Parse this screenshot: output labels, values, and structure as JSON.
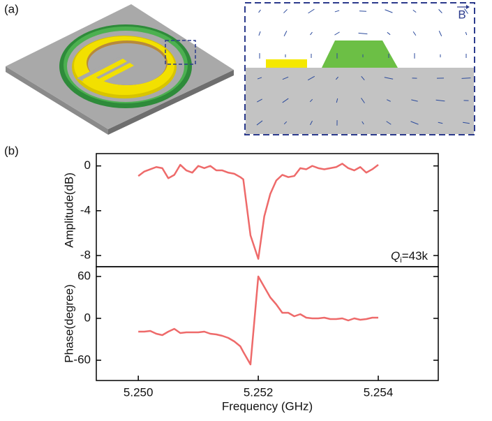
{
  "panel_labels": [
    "(a)",
    "(b)"
  ],
  "field_label": "B",
  "chart_data": [
    {
      "type": "line",
      "y_label": "Amplitude(dB)",
      "annotation": {
        "main": "Q",
        "sub": "i",
        "rest": "=43k"
      },
      "x": [
        5.25,
        5.2501,
        5.2502,
        5.2503,
        5.2504,
        5.2505,
        5.2506,
        5.2507,
        5.2508,
        5.2509,
        5.251,
        5.2511,
        5.2512,
        5.2513,
        5.2514,
        5.2515,
        5.2516,
        5.2517,
        5.25175,
        5.25187,
        5.252,
        5.2521,
        5.2522,
        5.2523,
        5.2524,
        5.2525,
        5.2526,
        5.2527,
        5.2528,
        5.2529,
        5.253,
        5.2531,
        5.2532,
        5.2533,
        5.2534,
        5.2535,
        5.2536,
        5.2537,
        5.2538,
        5.2539,
        5.254
      ],
      "series": [
        {
          "color": "#ee6a6a",
          "values": [
            -0.9,
            -0.5,
            -0.3,
            -0.1,
            -0.2,
            -1.1,
            -0.8,
            0.1,
            -0.4,
            -0.6,
            0.0,
            -0.2,
            0.0,
            -0.4,
            -0.4,
            -0.6,
            -0.7,
            -1.0,
            -1.2,
            -6.2,
            -8.3,
            -4.5,
            -2.5,
            -1.3,
            -0.8,
            -1.0,
            -0.9,
            -0.2,
            -0.3,
            0.0,
            -0.2,
            -0.3,
            -0.2,
            -0.1,
            0.2,
            -0.2,
            -0.4,
            -0.1,
            -0.6,
            -0.3,
            0.1
          ]
        }
      ],
      "xlim": [
        5.2493,
        5.255
      ],
      "ylim": [
        -9.0,
        1.1
      ],
      "yticks": [
        0,
        -4,
        -8
      ]
    },
    {
      "type": "line",
      "y_label": "Phase(degree)",
      "x_label": "Frequency (GHz)",
      "x": [
        5.25,
        5.2501,
        5.2502,
        5.2503,
        5.2504,
        5.2505,
        5.2506,
        5.2507,
        5.2508,
        5.2509,
        5.251,
        5.2511,
        5.2512,
        5.2513,
        5.2514,
        5.2515,
        5.2516,
        5.2517,
        5.25175,
        5.25187,
        5.252,
        5.2521,
        5.2522,
        5.2523,
        5.2524,
        5.2525,
        5.2526,
        5.2527,
        5.2528,
        5.2529,
        5.253,
        5.2531,
        5.2532,
        5.2533,
        5.2534,
        5.2535,
        5.2536,
        5.2537,
        5.2538,
        5.2539,
        5.254
      ],
      "series": [
        {
          "color": "#ee6a6a",
          "values": [
            -19,
            -19,
            -18,
            -22,
            -24,
            -19,
            -15,
            -21,
            -20,
            -20,
            -20,
            -19,
            -22,
            -23,
            -25,
            -28,
            -33,
            -40,
            -48,
            -66,
            60,
            45,
            30,
            20,
            8,
            8,
            3,
            6,
            1,
            0,
            0,
            1,
            -1,
            -1,
            0,
            -3,
            0,
            -2,
            -1,
            1,
            1
          ]
        }
      ],
      "xlim": [
        5.2493,
        5.255
      ],
      "ylim": [
        -89,
        74
      ],
      "yticks": [
        60,
        0,
        -60
      ],
      "xticks": [
        {
          "value": 5.25,
          "label": "5.250"
        },
        {
          "value": 5.252,
          "label": "5.252"
        },
        {
          "value": 5.254,
          "label": "5.254"
        }
      ]
    }
  ]
}
